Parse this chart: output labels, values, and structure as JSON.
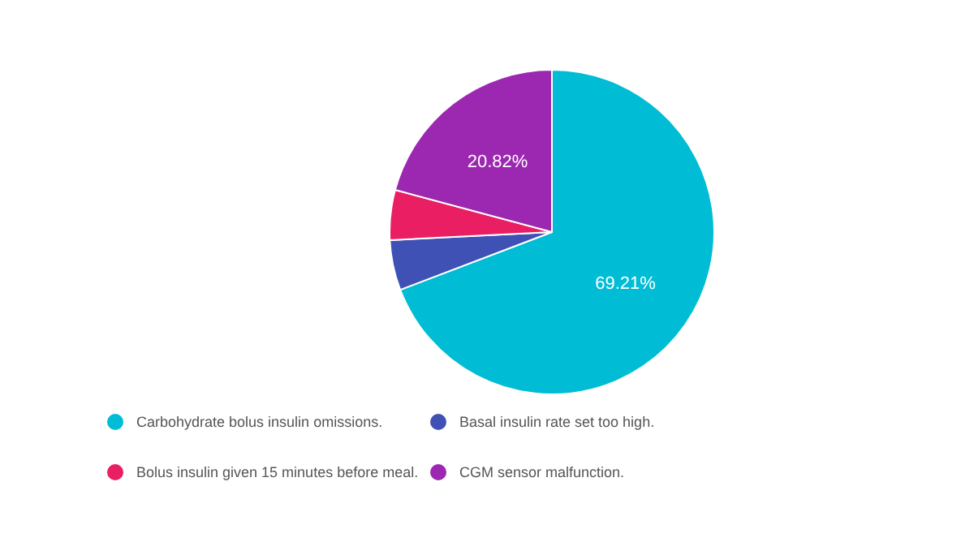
{
  "chart_data": {
    "type": "pie",
    "categories": [
      "Carbohydrate bolus insulin omissions.",
      "Basal insulin rate set too high.",
      "Bolus insulin given 15 minutes before meal.",
      "CGM sensor malfunction."
    ],
    "values": [
      69.21,
      5.0,
      4.97,
      20.82
    ],
    "colors": [
      "#00bcd4",
      "#3f51b5",
      "#e91e63",
      "#9c27b0"
    ],
    "value_labels": [
      "69.21%",
      null,
      null,
      "20.82%"
    ],
    "legend": "bottom"
  }
}
